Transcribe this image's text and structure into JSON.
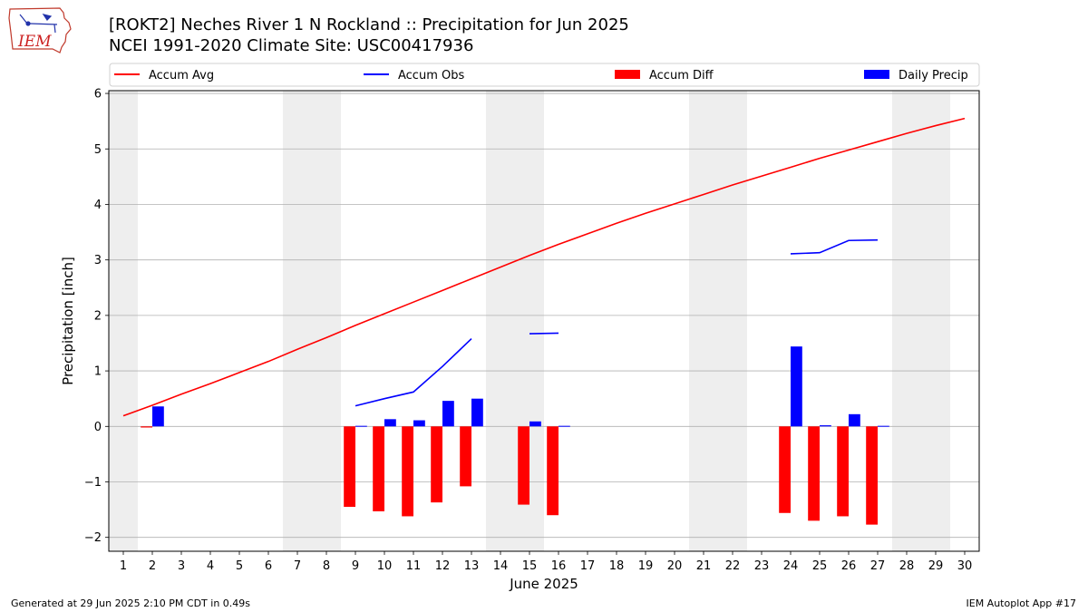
{
  "logo": {
    "text": "IEM"
  },
  "header": {
    "title": "[ROKT2] Neches River 1 N Rockland :: Precipitation for Jun 2025",
    "subtitle": "NCEI 1991-2020 Climate Site: USC00417936"
  },
  "footer": {
    "left": "Generated at 29 Jun 2025 2:10 PM CDT in 0.49s",
    "right": "IEM Autoplot App #17"
  },
  "colors": {
    "accum_avg": "#ff0000",
    "accum_obs": "#0000ff",
    "accum_diff": "#ff0000",
    "daily_precip": "#0000ff",
    "weekend_shade": "#eeeeee",
    "grid": "#b0b0b0"
  },
  "chart_data": {
    "type": "bar",
    "xlabel": "June 2025",
    "ylabel": "Precipitation [inch]",
    "xlim": [
      0.5,
      30.5
    ],
    "ylim": [
      -2.25,
      6.05
    ],
    "yticks": [
      -2,
      -1,
      0,
      1,
      2,
      3,
      4,
      5,
      6
    ],
    "ytick_labels": [
      "−2",
      "−1",
      "0",
      "1",
      "2",
      "3",
      "4",
      "5",
      "6"
    ],
    "days": [
      1,
      2,
      3,
      4,
      5,
      6,
      7,
      8,
      9,
      10,
      11,
      12,
      13,
      14,
      15,
      16,
      17,
      18,
      19,
      20,
      21,
      22,
      23,
      24,
      25,
      26,
      27,
      28,
      29,
      30
    ],
    "grid": "horizontal",
    "weekend_spans": [
      [
        0.5,
        1.5
      ],
      [
        6.5,
        8.5
      ],
      [
        13.5,
        15.5
      ],
      [
        20.5,
        22.5
      ],
      [
        27.5,
        29.5
      ]
    ],
    "legend": {
      "position": "top",
      "entries": [
        {
          "label": "Accum Avg",
          "kind": "line",
          "color": "#ff0000"
        },
        {
          "label": "Accum Obs",
          "kind": "line",
          "color": "#0000ff"
        },
        {
          "label": "Accum Diff",
          "kind": "bar",
          "color": "#ff0000"
        },
        {
          "label": "Daily Precip",
          "kind": "bar",
          "color": "#0000ff"
        }
      ]
    },
    "series": [
      {
        "name": "Accum Avg",
        "type": "line",
        "values": [
          0.19,
          0.38,
          0.58,
          0.77,
          0.97,
          1.17,
          1.39,
          1.6,
          1.82,
          2.03,
          2.24,
          2.45,
          2.66,
          2.87,
          3.08,
          3.28,
          3.47,
          3.66,
          3.84,
          4.01,
          4.18,
          4.35,
          4.51,
          4.67,
          4.83,
          4.98,
          5.13,
          5.28,
          5.42,
          5.55
        ]
      },
      {
        "name": "Accum Obs",
        "type": "line",
        "values": [
          null,
          null,
          null,
          null,
          null,
          null,
          null,
          null,
          0.37,
          0.5,
          0.62,
          1.08,
          1.58,
          null,
          1.67,
          1.68,
          null,
          null,
          null,
          null,
          null,
          null,
          null,
          3.11,
          3.13,
          3.35,
          3.36,
          null,
          null,
          null
        ]
      },
      {
        "name": "Accum Diff",
        "type": "bar",
        "values": [
          null,
          -0.02,
          null,
          null,
          null,
          null,
          null,
          null,
          -1.45,
          -1.53,
          -1.62,
          -1.37,
          -1.08,
          null,
          -1.41,
          -1.6,
          null,
          null,
          null,
          null,
          null,
          null,
          null,
          -1.56,
          -1.7,
          -1.62,
          -1.77,
          null,
          null,
          null
        ]
      },
      {
        "name": "Daily Precip",
        "type": "bar",
        "values": [
          null,
          0.36,
          null,
          null,
          null,
          null,
          null,
          null,
          0.01,
          0.13,
          0.11,
          0.46,
          0.5,
          null,
          0.09,
          0.01,
          null,
          null,
          null,
          null,
          null,
          null,
          null,
          1.44,
          0.02,
          0.22,
          0.01,
          null,
          null,
          null
        ]
      }
    ]
  }
}
